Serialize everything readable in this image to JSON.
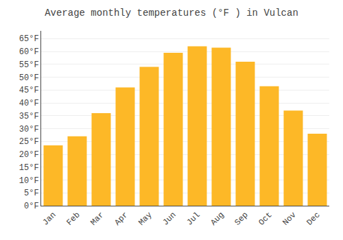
{
  "chart_data": {
    "type": "bar",
    "title": "Average monthly temperatures (°F ) in Vulcan",
    "categories": [
      "Jan",
      "Feb",
      "Mar",
      "Apr",
      "May",
      "Jun",
      "Jul",
      "Aug",
      "Sep",
      "Oct",
      "Nov",
      "Dec"
    ],
    "values": [
      23.5,
      27,
      36,
      46,
      54,
      59.5,
      62,
      61.5,
      56,
      46.5,
      37,
      28
    ],
    "color": "#FDB827",
    "ylim": [
      0,
      68
    ],
    "yticks": [
      {
        "value": 0,
        "label": "0°F"
      },
      {
        "value": 5,
        "label": "5°F"
      },
      {
        "value": 10,
        "label": "10°F"
      },
      {
        "value": 15,
        "label": "15°F"
      },
      {
        "value": 20,
        "label": "20°F"
      },
      {
        "value": 25,
        "label": "25°F"
      },
      {
        "value": 30,
        "label": "30°F"
      },
      {
        "value": 35,
        "label": "35°F"
      },
      {
        "value": 40,
        "label": "40°F"
      },
      {
        "value": 45,
        "label": "45°F"
      },
      {
        "value": 50,
        "label": "50°F"
      },
      {
        "value": 55,
        "label": "55°F"
      },
      {
        "value": 60,
        "label": "60°F"
      },
      {
        "value": 65,
        "label": "65°F"
      }
    ],
    "grid": true
  }
}
